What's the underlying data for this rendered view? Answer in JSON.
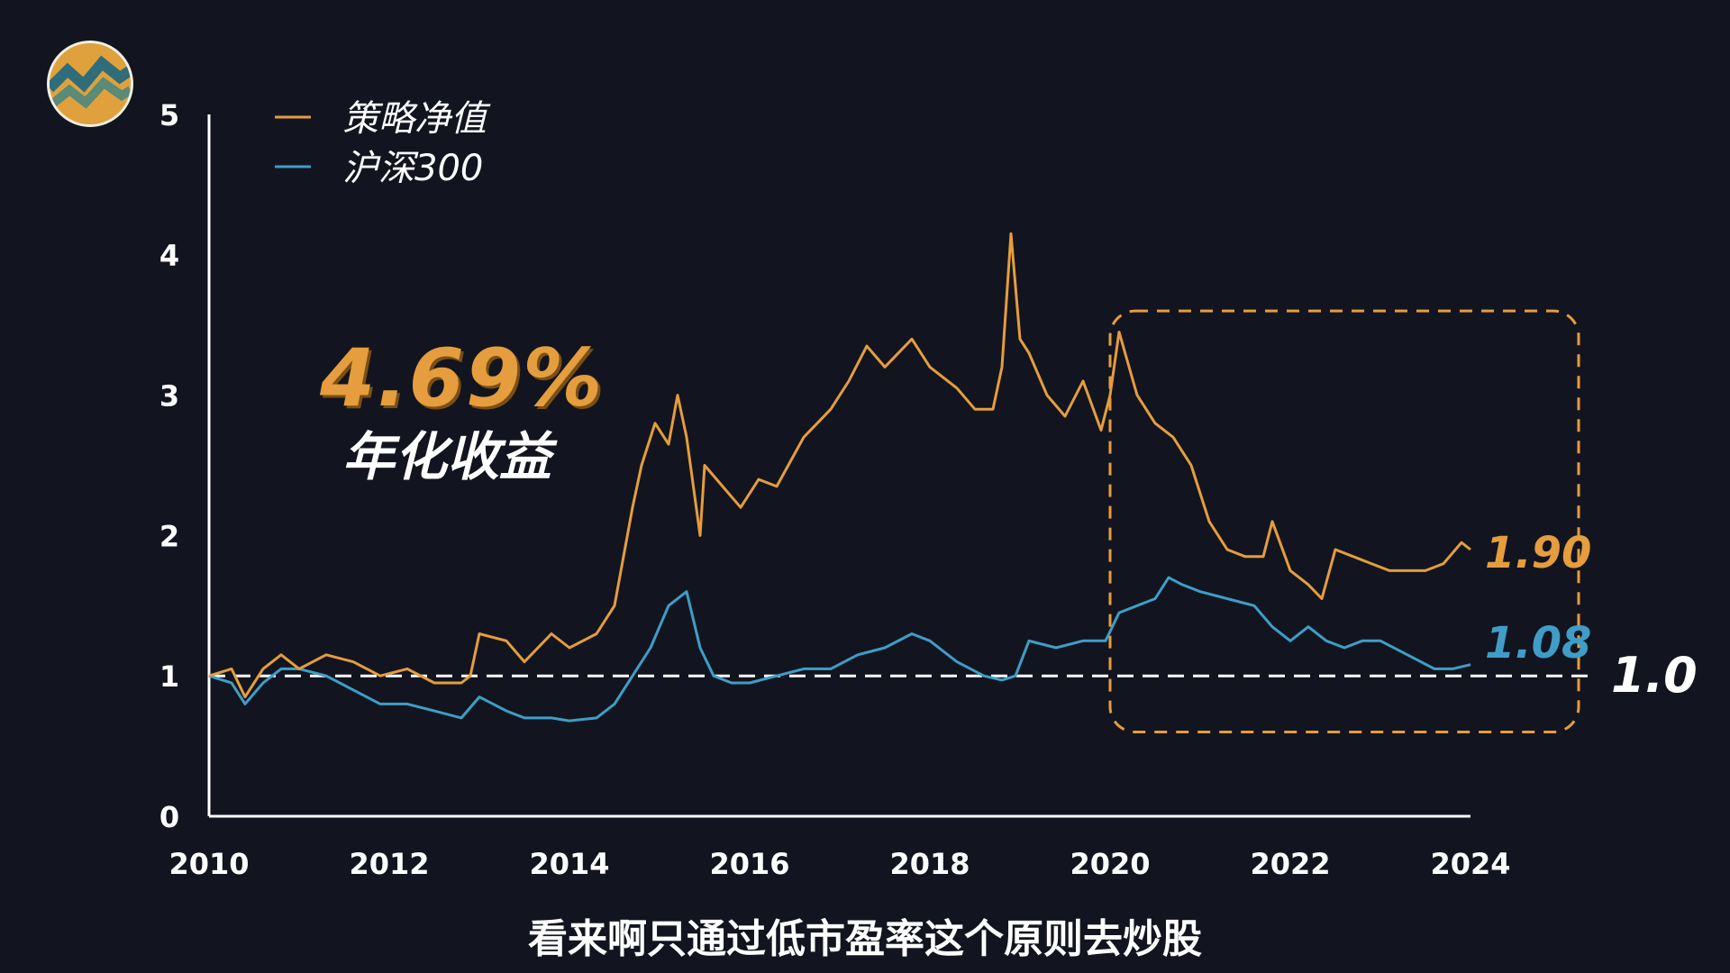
{
  "annotations": {
    "annual_return": "4.69%",
    "annual_return_label": "年化收益",
    "subtitle": "看来啊只通过低市盈率这个原则去炒股",
    "baseline_label": "1.0",
    "strategy_end_label": "1.90",
    "index_end_label": "1.08"
  },
  "colors": {
    "strategy": "#e59d3d",
    "index": "#3f9dc8",
    "background": "#12151f",
    "axis": "#ffffff"
  },
  "logo": {
    "name": "zigzag-logo-icon"
  },
  "chart_data": {
    "type": "line",
    "xlim": [
      2010,
      2024
    ],
    "ylim": [
      0,
      5
    ],
    "x_ticks": [
      "2010",
      "2012",
      "2014",
      "2016",
      "2018",
      "2020",
      "2022",
      "2024"
    ],
    "y_ticks": [
      "0",
      "1",
      "2",
      "3",
      "4",
      "5"
    ],
    "legend_position": "top-left",
    "grid": false,
    "reference_line": {
      "y": 1.0,
      "style": "dashed"
    },
    "highlight_box": {
      "x": [
        2020.0,
        2025.2
      ],
      "y": [
        0.6,
        3.6
      ],
      "style": "dashed"
    },
    "series": [
      {
        "name": "策略净值",
        "x": [
          2010.0,
          2010.25,
          2010.4,
          2010.6,
          2010.8,
          2011.0,
          2011.3,
          2011.6,
          2011.9,
          2012.2,
          2012.5,
          2012.8,
          2012.9,
          2013.0,
          2013.3,
          2013.5,
          2013.8,
          2014.0,
          2014.3,
          2014.5,
          2014.7,
          2014.8,
          2014.95,
          2015.1,
          2015.2,
          2015.3,
          2015.45,
          2015.5,
          2015.7,
          2015.9,
          2016.1,
          2016.3,
          2016.6,
          2016.9,
          2017.1,
          2017.3,
          2017.5,
          2017.8,
          2018.0,
          2018.3,
          2018.5,
          2018.7,
          2018.8,
          2018.9,
          2019.0,
          2019.1,
          2019.3,
          2019.5,
          2019.7,
          2019.9,
          2020.0,
          2020.1,
          2020.3,
          2020.5,
          2020.7,
          2020.9,
          2021.1,
          2021.3,
          2021.5,
          2021.7,
          2021.8,
          2022.0,
          2022.2,
          2022.35,
          2022.5,
          2022.7,
          2022.9,
          2023.1,
          2023.3,
          2023.5,
          2023.7,
          2023.9,
          2024.0
        ],
        "y": [
          1.0,
          1.05,
          0.85,
          1.05,
          1.15,
          1.05,
          1.15,
          1.1,
          1.0,
          1.05,
          0.95,
          0.95,
          1.0,
          1.3,
          1.25,
          1.1,
          1.3,
          1.2,
          1.3,
          1.5,
          2.2,
          2.5,
          2.8,
          2.65,
          3.0,
          2.7,
          2.0,
          2.5,
          2.35,
          2.2,
          2.4,
          2.35,
          2.7,
          2.9,
          3.1,
          3.35,
          3.2,
          3.4,
          3.2,
          3.05,
          2.9,
          2.9,
          3.2,
          4.15,
          3.4,
          3.3,
          3.0,
          2.85,
          3.1,
          2.75,
          3.0,
          3.45,
          3.0,
          2.8,
          2.7,
          2.5,
          2.1,
          1.9,
          1.85,
          1.85,
          2.1,
          1.75,
          1.65,
          1.55,
          1.9,
          1.85,
          1.8,
          1.75,
          1.75,
          1.75,
          1.8,
          1.95,
          1.9
        ]
      },
      {
        "name": "沪深300",
        "x": [
          2010.0,
          2010.25,
          2010.4,
          2010.6,
          2010.8,
          2011.0,
          2011.3,
          2011.6,
          2011.9,
          2012.2,
          2012.5,
          2012.8,
          2013.0,
          2013.3,
          2013.5,
          2013.8,
          2014.0,
          2014.3,
          2014.5,
          2014.7,
          2014.9,
          2015.1,
          2015.3,
          2015.45,
          2015.6,
          2015.8,
          2016.0,
          2016.3,
          2016.6,
          2016.9,
          2017.2,
          2017.5,
          2017.8,
          2018.0,
          2018.3,
          2018.6,
          2018.8,
          2018.95,
          2019.1,
          2019.4,
          2019.7,
          2019.95,
          2020.1,
          2020.3,
          2020.5,
          2020.65,
          2020.8,
          2021.0,
          2021.3,
          2021.6,
          2021.8,
          2022.0,
          2022.2,
          2022.4,
          2022.6,
          2022.8,
          2023.0,
          2023.3,
          2023.6,
          2023.8,
          2024.0
        ],
        "y": [
          1.0,
          0.95,
          0.8,
          0.95,
          1.05,
          1.05,
          1.0,
          0.9,
          0.8,
          0.8,
          0.75,
          0.7,
          0.85,
          0.75,
          0.7,
          0.7,
          0.68,
          0.7,
          0.8,
          1.0,
          1.2,
          1.5,
          1.6,
          1.2,
          1.0,
          0.95,
          0.95,
          1.0,
          1.05,
          1.05,
          1.15,
          1.2,
          1.3,
          1.25,
          1.1,
          1.0,
          0.97,
          1.0,
          1.25,
          1.2,
          1.25,
          1.25,
          1.45,
          1.5,
          1.55,
          1.7,
          1.65,
          1.6,
          1.55,
          1.5,
          1.35,
          1.25,
          1.35,
          1.25,
          1.2,
          1.25,
          1.25,
          1.15,
          1.05,
          1.05,
          1.08
        ]
      }
    ]
  }
}
